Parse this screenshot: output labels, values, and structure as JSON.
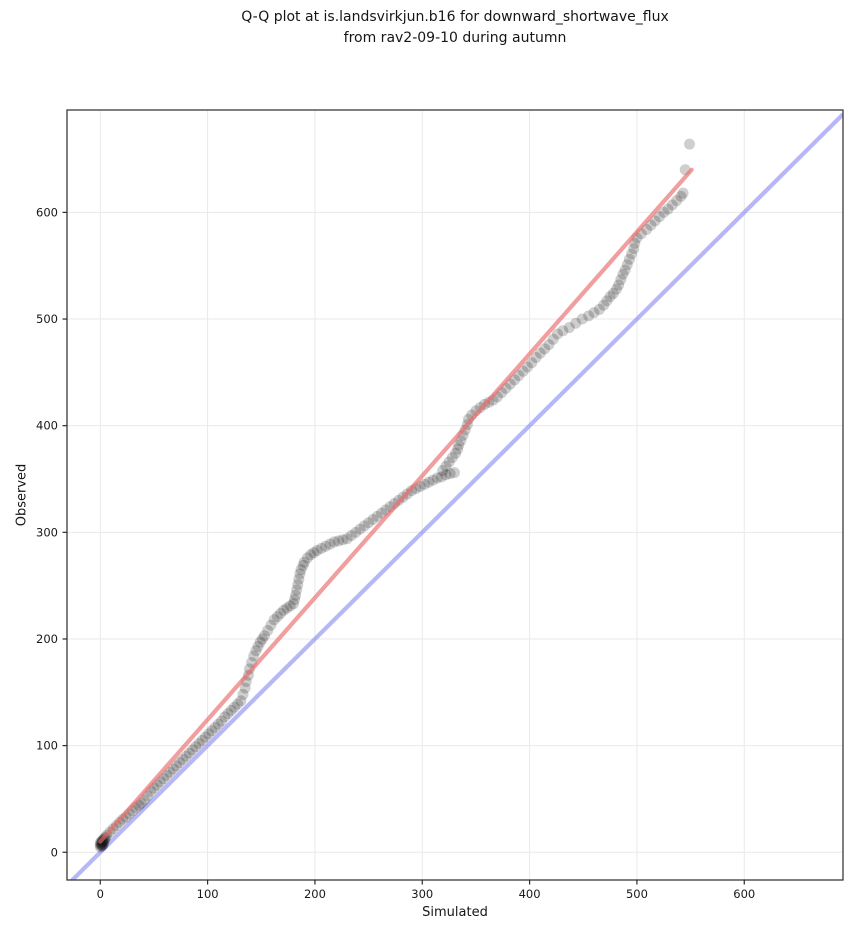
{
  "figure": {
    "title_line1": "Q-Q plot at is.landsvirkjun.b16 for downward_shortwave_flux",
    "title_line2": "from rav2-09-10 during autumn"
  },
  "chart_data": {
    "type": "scatter",
    "title": "Q-Q plot at is.landsvirkjun.b16 for downward_shortwave_flux from rav2-09-10 during autumn",
    "xlabel": "Simulated",
    "ylabel": "Observed",
    "xlim": [
      -31,
      692
    ],
    "ylim": [
      -26,
      696
    ],
    "x_ticks": [
      0,
      100,
      200,
      300,
      400,
      500,
      600
    ],
    "y_ticks": [
      0,
      100,
      200,
      300,
      400,
      500,
      600
    ],
    "grid": true,
    "grid_color": "#e9e9e9",
    "spine_color": "#2a2a2a",
    "tick_label_color": "#1a1a1a",
    "legend": "none",
    "identity_line": {
      "label": "identity y=x",
      "points": [
        [
          -31,
          -31
        ],
        [
          692,
          692
        ]
      ],
      "color": "#7b7bf0",
      "opacity": 0.55,
      "width": 4.2
    },
    "fit_line": {
      "label": "q-q fit",
      "points": [
        [
          0,
          10
        ],
        [
          551,
          640
        ]
      ],
      "color": "#e96a6a",
      "opacity": 0.65,
      "width": 4.2
    },
    "scatter": {
      "label": "quantile points (Simulated vs Observed)",
      "color": "#111111",
      "opacity": 0.2,
      "marker_radius": 5.5,
      "points": [
        [
          0,
          5
        ],
        [
          0,
          7
        ],
        [
          0,
          9
        ],
        [
          1,
          6
        ],
        [
          1,
          8
        ],
        [
          1,
          10
        ],
        [
          2,
          6
        ],
        [
          2,
          7
        ],
        [
          2,
          9
        ],
        [
          2,
          11
        ],
        [
          3,
          8
        ],
        [
          3,
          10
        ],
        [
          3,
          12
        ],
        [
          4,
          11
        ],
        [
          4,
          13
        ],
        [
          5,
          14
        ],
        [
          6,
          16
        ],
        [
          9,
          19
        ],
        [
          12,
          22
        ],
        [
          15,
          25
        ],
        [
          18,
          28
        ],
        [
          21,
          31
        ],
        [
          24,
          33
        ],
        [
          27,
          36
        ],
        [
          30,
          39
        ],
        [
          33,
          42
        ],
        [
          36,
          44
        ],
        [
          38,
          46
        ],
        [
          41,
          49
        ],
        [
          44,
          53
        ],
        [
          47,
          57
        ],
        [
          50,
          60
        ],
        [
          53,
          63
        ],
        [
          56,
          66
        ],
        [
          59,
          69
        ],
        [
          62,
          72
        ],
        [
          65,
          75
        ],
        [
          68,
          78
        ],
        [
          71,
          81
        ],
        [
          74,
          84
        ],
        [
          77,
          87
        ],
        [
          80,
          90
        ],
        [
          83,
          93
        ],
        [
          86,
          96
        ],
        [
          89,
          99
        ],
        [
          92,
          102
        ],
        [
          95,
          105
        ],
        [
          98,
          108
        ],
        [
          101,
          111
        ],
        [
          104,
          114
        ],
        [
          107,
          117
        ],
        [
          110,
          120
        ],
        [
          113,
          123
        ],
        [
          116,
          127
        ],
        [
          119,
          130
        ],
        [
          122,
          133
        ],
        [
          125,
          136
        ],
        [
          128,
          139
        ],
        [
          131,
          142
        ],
        [
          133,
          148
        ],
        [
          135,
          154
        ],
        [
          136,
          160
        ],
        [
          138,
          166
        ],
        [
          139,
          172
        ],
        [
          141,
          178
        ],
        [
          143,
          184
        ],
        [
          145,
          189
        ],
        [
          147,
          193
        ],
        [
          149,
          197
        ],
        [
          151,
          200
        ],
        [
          153,
          203
        ],
        [
          156,
          208
        ],
        [
          159,
          213
        ],
        [
          162,
          218
        ],
        [
          165,
          221
        ],
        [
          168,
          224
        ],
        [
          171,
          227
        ],
        [
          174,
          229
        ],
        [
          177,
          231
        ],
        [
          180,
          233
        ],
        [
          181,
          237
        ],
        [
          182,
          241
        ],
        [
          183,
          246
        ],
        [
          184,
          251
        ],
        [
          185,
          256
        ],
        [
          186,
          261
        ],
        [
          187,
          265
        ],
        [
          189,
          269
        ],
        [
          190,
          272
        ],
        [
          193,
          276
        ],
        [
          196,
          279
        ],
        [
          199,
          281
        ],
        [
          202,
          283
        ],
        [
          206,
          285
        ],
        [
          210,
          287
        ],
        [
          214,
          289
        ],
        [
          218,
          291
        ],
        [
          222,
          292
        ],
        [
          226,
          293
        ],
        [
          230,
          294
        ],
        [
          234,
          297
        ],
        [
          238,
          300
        ],
        [
          242,
          303
        ],
        [
          246,
          306
        ],
        [
          250,
          309
        ],
        [
          254,
          312
        ],
        [
          258,
          315
        ],
        [
          262,
          318
        ],
        [
          266,
          321
        ],
        [
          270,
          324
        ],
        [
          274,
          327
        ],
        [
          278,
          330
        ],
        [
          282,
          333
        ],
        [
          286,
          336
        ],
        [
          290,
          339
        ],
        [
          294,
          341
        ],
        [
          298,
          343
        ],
        [
          302,
          345
        ],
        [
          306,
          347
        ],
        [
          310,
          349
        ],
        [
          314,
          351
        ],
        [
          318,
          352
        ],
        [
          322,
          354
        ],
        [
          326,
          355
        ],
        [
          330,
          356
        ],
        [
          319,
          358
        ],
        [
          322,
          362
        ],
        [
          325,
          366
        ],
        [
          328,
          370
        ],
        [
          331,
          374
        ],
        [
          333,
          378
        ],
        [
          334,
          382
        ],
        [
          336,
          386
        ],
        [
          338,
          391
        ],
        [
          340,
          396
        ],
        [
          342,
          401
        ],
        [
          343,
          406
        ],
        [
          346,
          410
        ],
        [
          350,
          414
        ],
        [
          354,
          417
        ],
        [
          358,
          420
        ],
        [
          362,
          422
        ],
        [
          366,
          424
        ],
        [
          370,
          427
        ],
        [
          374,
          431
        ],
        [
          378,
          435
        ],
        [
          382,
          439
        ],
        [
          386,
          443
        ],
        [
          390,
          447
        ],
        [
          394,
          451
        ],
        [
          398,
          455
        ],
        [
          402,
          459
        ],
        [
          406,
          464
        ],
        [
          410,
          468
        ],
        [
          414,
          472
        ],
        [
          418,
          476
        ],
        [
          422,
          481
        ],
        [
          426,
          486
        ],
        [
          431,
          489
        ],
        [
          437,
          492
        ],
        [
          443,
          496
        ],
        [
          449,
          500
        ],
        [
          455,
          503
        ],
        [
          460,
          506
        ],
        [
          465,
          509
        ],
        [
          469,
          513
        ],
        [
          472,
          517
        ],
        [
          475,
          521
        ],
        [
          478,
          524
        ],
        [
          481,
          528
        ],
        [
          483,
          532
        ],
        [
          485,
          537
        ],
        [
          487,
          542
        ],
        [
          489,
          546
        ],
        [
          491,
          551
        ],
        [
          493,
          556
        ],
        [
          495,
          561
        ],
        [
          497,
          566
        ],
        [
          498,
          571
        ],
        [
          500,
          576
        ],
        [
          504,
          580
        ],
        [
          509,
          584
        ],
        [
          513,
          588
        ],
        [
          517,
          592
        ],
        [
          521,
          596
        ],
        [
          525,
          600
        ],
        [
          529,
          603
        ],
        [
          533,
          607
        ],
        [
          537,
          611
        ],
        [
          541,
          615
        ],
        [
          543,
          618
        ],
        [
          545,
          640
        ],
        [
          549,
          664
        ]
      ]
    }
  }
}
